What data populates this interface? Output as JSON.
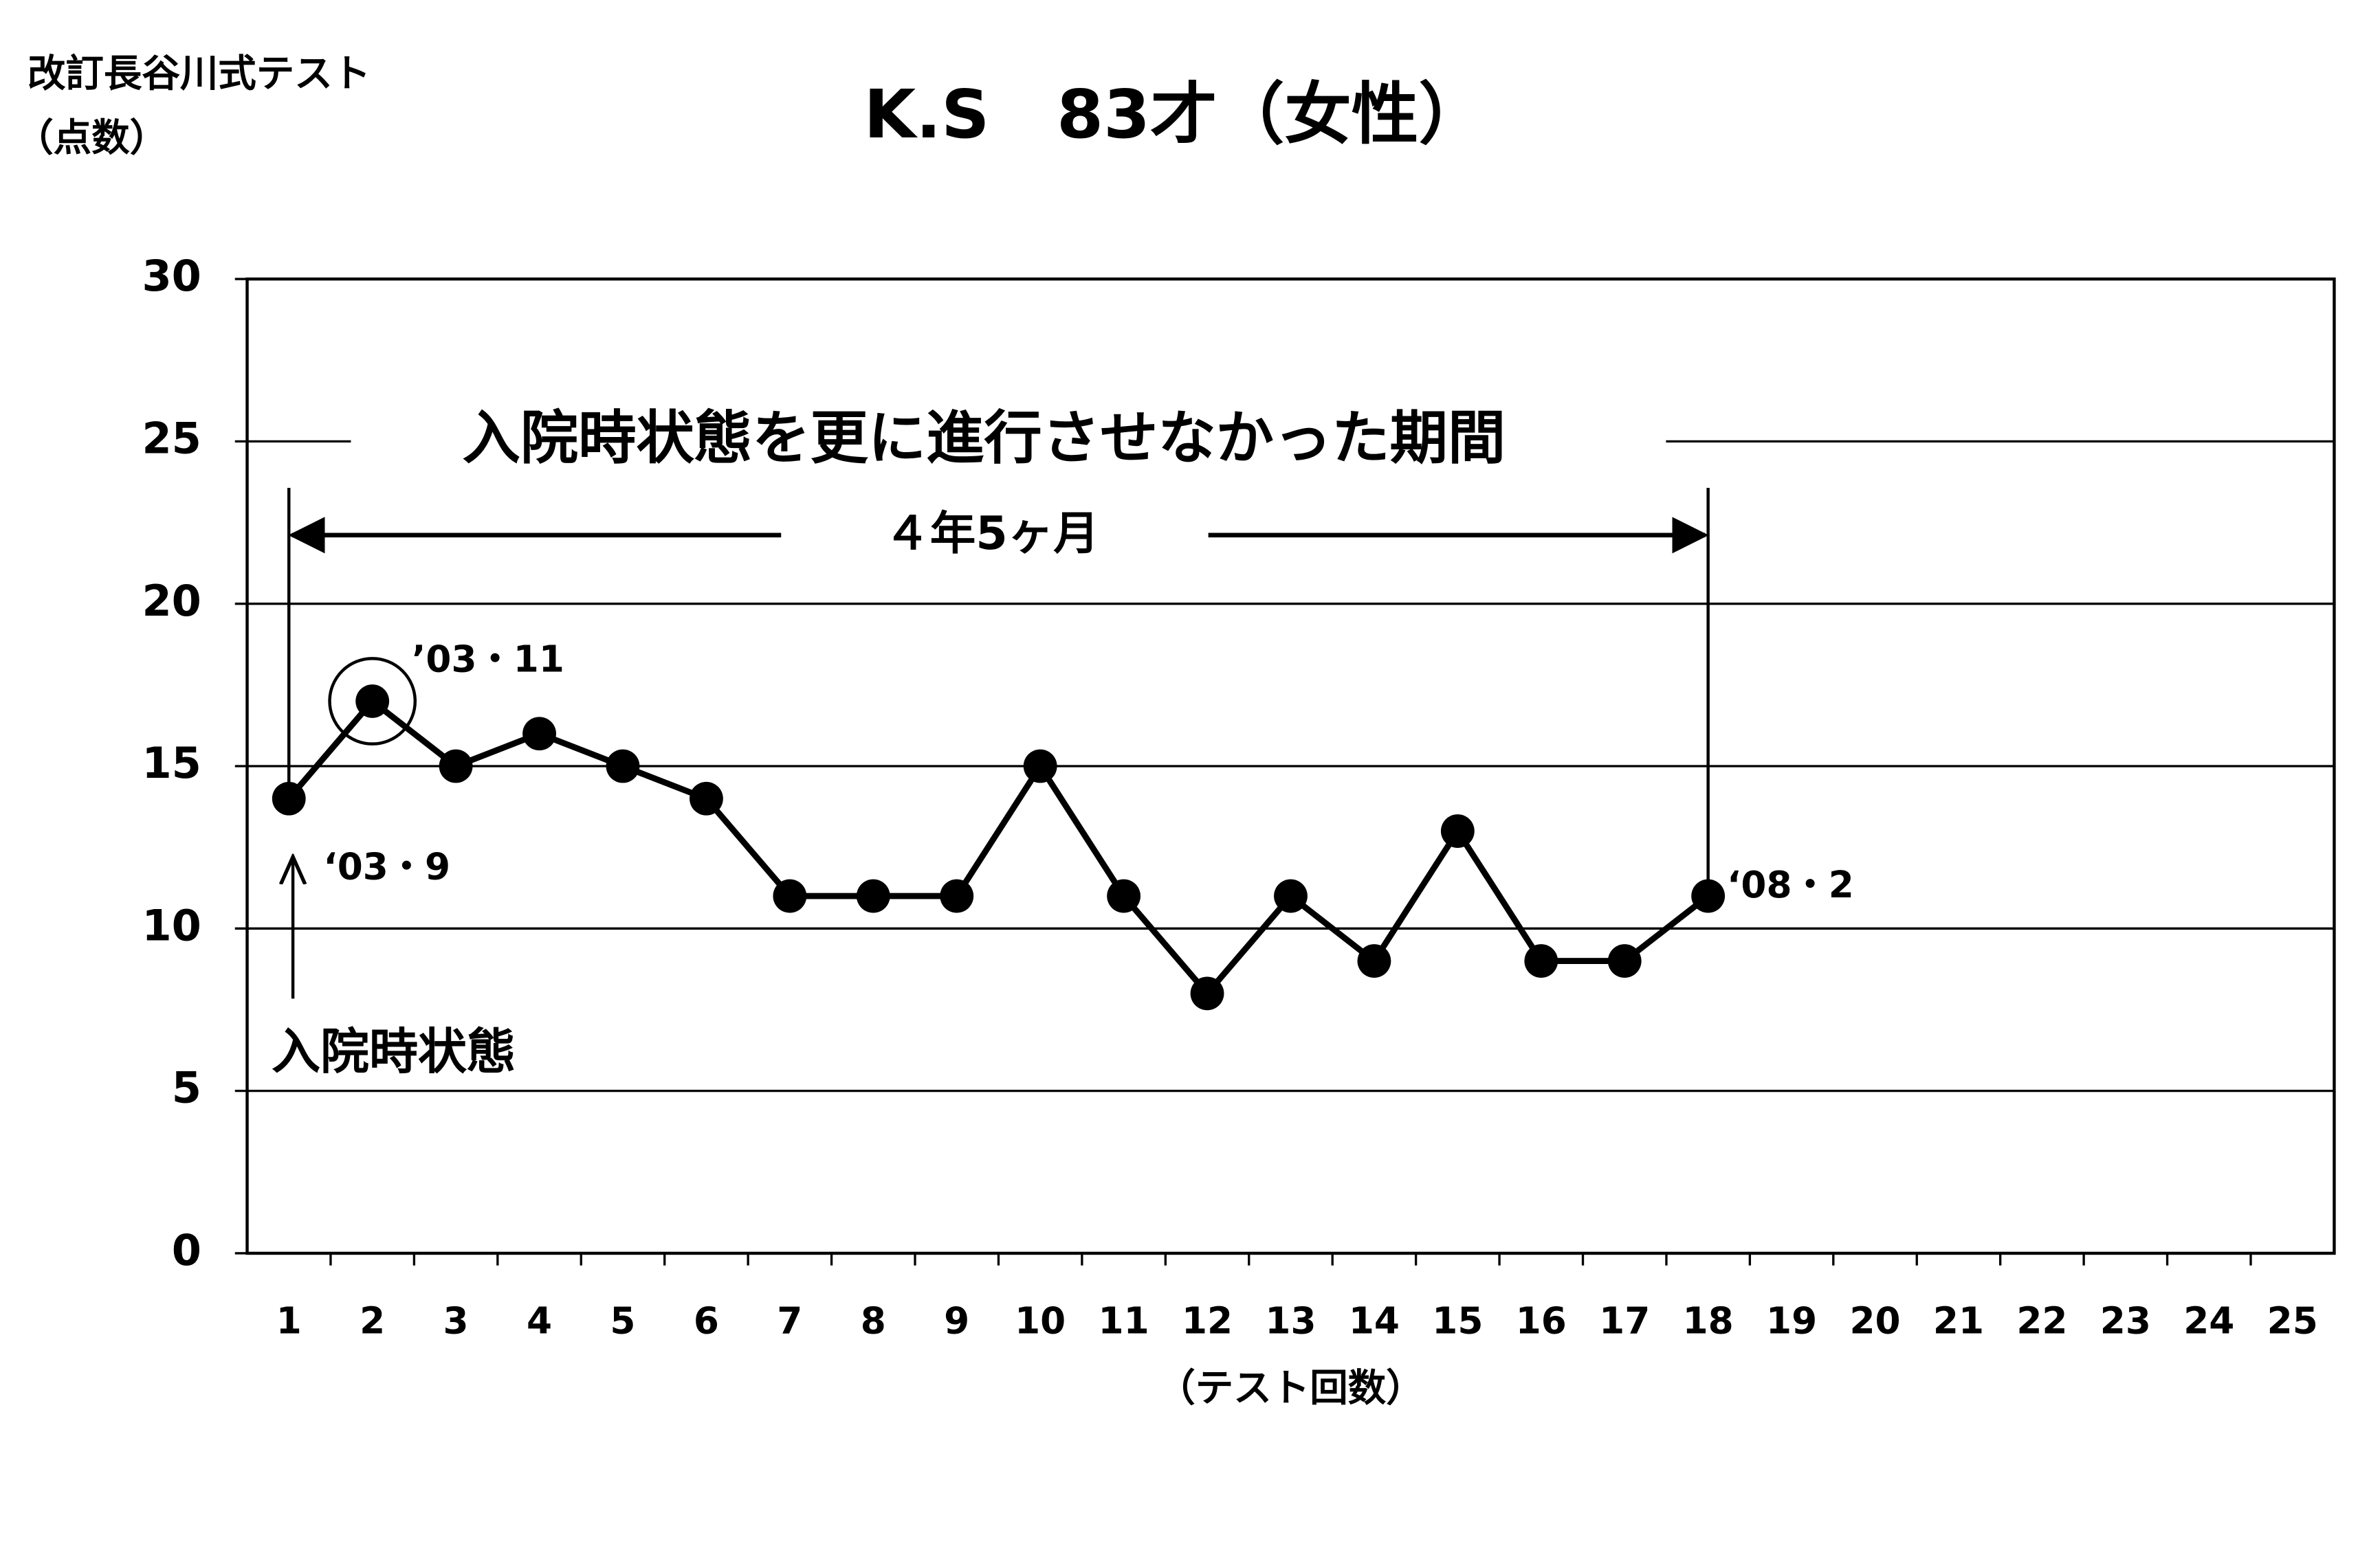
{
  "chart_data": {
    "type": "line",
    "title": "K.S　83才（女性）",
    "y_label": [
      "改訂長谷川式テスト",
      "（点数）"
    ],
    "x_label": "（テスト回数）",
    "categories": [
      "1",
      "2",
      "3",
      "4",
      "5",
      "6",
      "7",
      "8",
      "9",
      "10",
      "11",
      "12",
      "13",
      "14",
      "15",
      "16",
      "17",
      "18",
      "19",
      "20",
      "21",
      "22",
      "23",
      "24",
      "25"
    ],
    "values": [
      14,
      17,
      15,
      16,
      15,
      14,
      11,
      11,
      11,
      15,
      11,
      8,
      11,
      9,
      13,
      9,
      9,
      11,
      null,
      null,
      null,
      null,
      null,
      null,
      null
    ],
    "color": "#000000",
    "ylim": [
      0,
      30
    ],
    "yticks": [
      0,
      5,
      10,
      15,
      20,
      25,
      30
    ],
    "grid": true,
    "annotations": {
      "period": "入院時状態を更に進行させなかった期間",
      "duration": "４年5ヶ月",
      "peak_date": "’03・11",
      "start_date": "‘03・9",
      "end_date": "‘08・2",
      "admission": "入院時状態"
    }
  }
}
